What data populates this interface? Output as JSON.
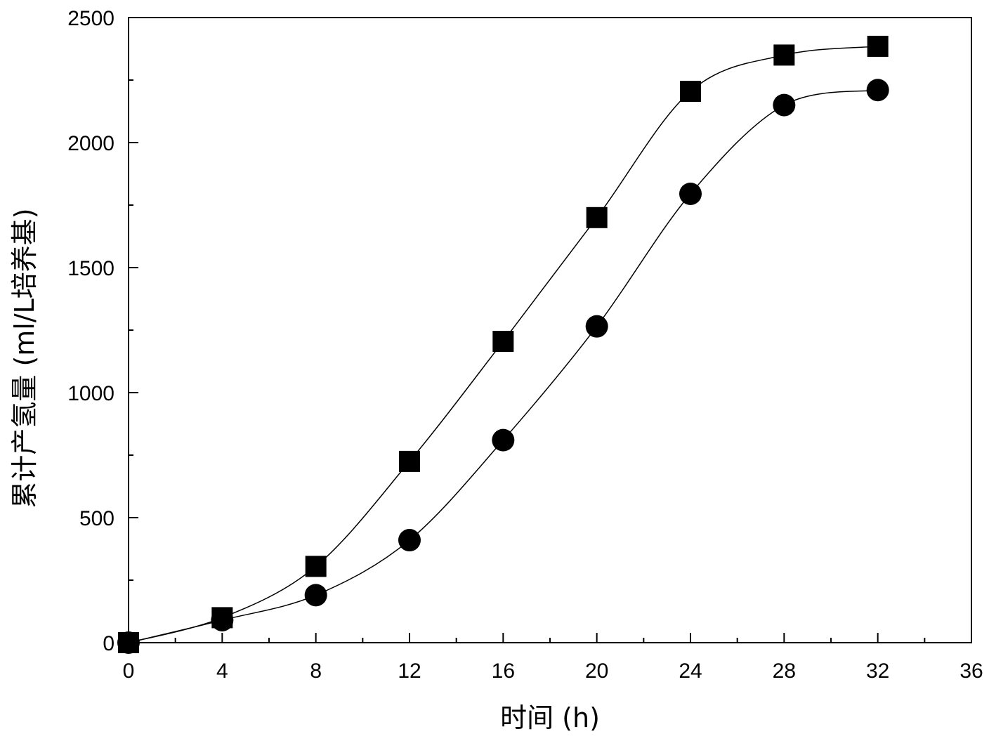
{
  "chart_data": {
    "type": "line",
    "title": "",
    "xlabel": "时间 (h)",
    "ylabel": "累计产氢量 (ml/L培养基)",
    "xlim": [
      0,
      36
    ],
    "ylim": [
      0,
      2500
    ],
    "xticks": [
      0,
      4,
      8,
      12,
      16,
      20,
      24,
      28,
      32,
      36
    ],
    "yticks": [
      0,
      500,
      1000,
      1500,
      2000,
      2500
    ],
    "grid": false,
    "legend": "none",
    "x": [
      0,
      4,
      8,
      12,
      16,
      20,
      24,
      28,
      32
    ],
    "series": [
      {
        "marker": "square",
        "values": [
          0,
          100,
          305,
          725,
          1205,
          1700,
          2205,
          2350,
          2385
        ]
      },
      {
        "marker": "circle",
        "values": [
          0,
          90,
          190,
          410,
          810,
          1265,
          1795,
          2150,
          2210
        ]
      }
    ]
  }
}
